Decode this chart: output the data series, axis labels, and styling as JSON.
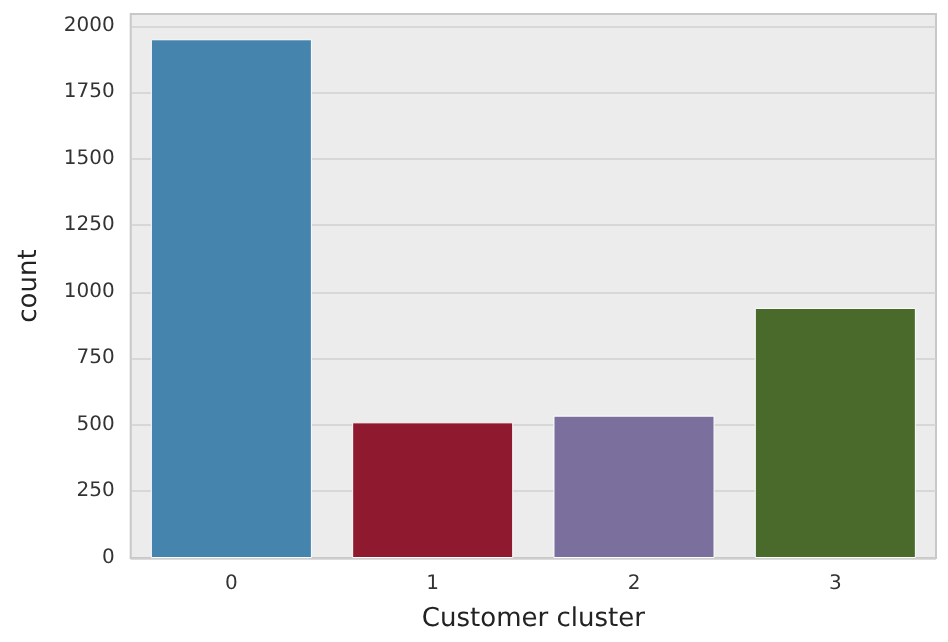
{
  "chart_data": {
    "type": "bar",
    "xlabel": "Customer cluster",
    "ylabel": "count",
    "categories": [
      "0",
      "1",
      "2",
      "3"
    ],
    "values": [
      1950,
      510,
      535,
      940
    ],
    "colors": [
      "#4584ad",
      "#8f1a30",
      "#7b6f9d",
      "#4a6a2c"
    ],
    "ylim": [
      0,
      2045
    ],
    "yticks": [
      0,
      250,
      500,
      750,
      1000,
      1250,
      1500,
      1750,
      2000
    ],
    "grid": "y"
  }
}
